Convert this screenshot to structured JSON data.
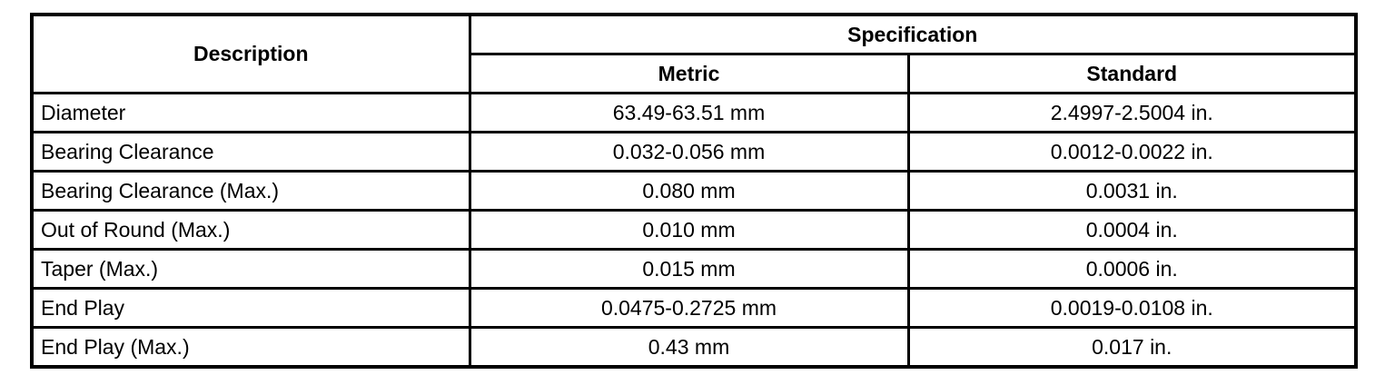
{
  "table": {
    "headers": {
      "description": "Description",
      "specification": "Specification",
      "metric": "Metric",
      "standard": "Standard"
    },
    "rows": [
      {
        "description": "Diameter",
        "metric": "63.49-63.51 mm",
        "standard": "2.4997-2.5004 in."
      },
      {
        "description": "Bearing Clearance",
        "metric": "0.032-0.056 mm",
        "standard": "0.0012-0.0022 in."
      },
      {
        "description": "Bearing Clearance (Max.)",
        "metric": "0.080 mm",
        "standard": "0.0031 in."
      },
      {
        "description": "Out of Round (Max.)",
        "metric": "0.010 mm",
        "standard": "0.0004 in."
      },
      {
        "description": "Taper (Max.)",
        "metric": "0.015 mm",
        "standard": "0.0006 in."
      },
      {
        "description": "End Play",
        "metric": "0.0475-0.2725 mm",
        "standard": "0.0019-0.0108 in."
      },
      {
        "description": "End Play (Max.)",
        "metric": "0.43 mm",
        "standard": "0.017 in."
      }
    ],
    "colors": {
      "border": "#000000",
      "background": "#ffffff",
      "text": "#000000"
    }
  }
}
